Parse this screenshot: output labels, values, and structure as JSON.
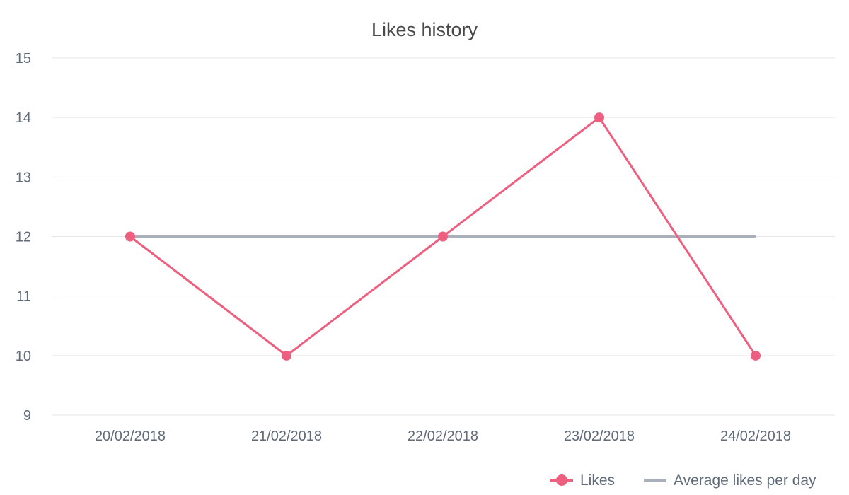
{
  "chart_data": {
    "type": "line",
    "title": "Likes history",
    "xlabel": "",
    "ylabel": "",
    "categories": [
      "20/02/2018",
      "21/02/2018",
      "22/02/2018",
      "23/02/2018",
      "24/02/2018"
    ],
    "ylim": [
      9,
      15
    ],
    "yticks": [
      9,
      10,
      11,
      12,
      13,
      14,
      15
    ],
    "grid": true,
    "legend_position": "bottom-right",
    "series": [
      {
        "name": "Likes",
        "values": [
          12,
          10,
          12,
          14,
          10
        ],
        "color": "#ee5e7f",
        "markers": true
      },
      {
        "name": "Average likes per day",
        "values": [
          12,
          12,
          12,
          12,
          12
        ],
        "color": "#a9b0bb",
        "markers": false
      }
    ]
  }
}
